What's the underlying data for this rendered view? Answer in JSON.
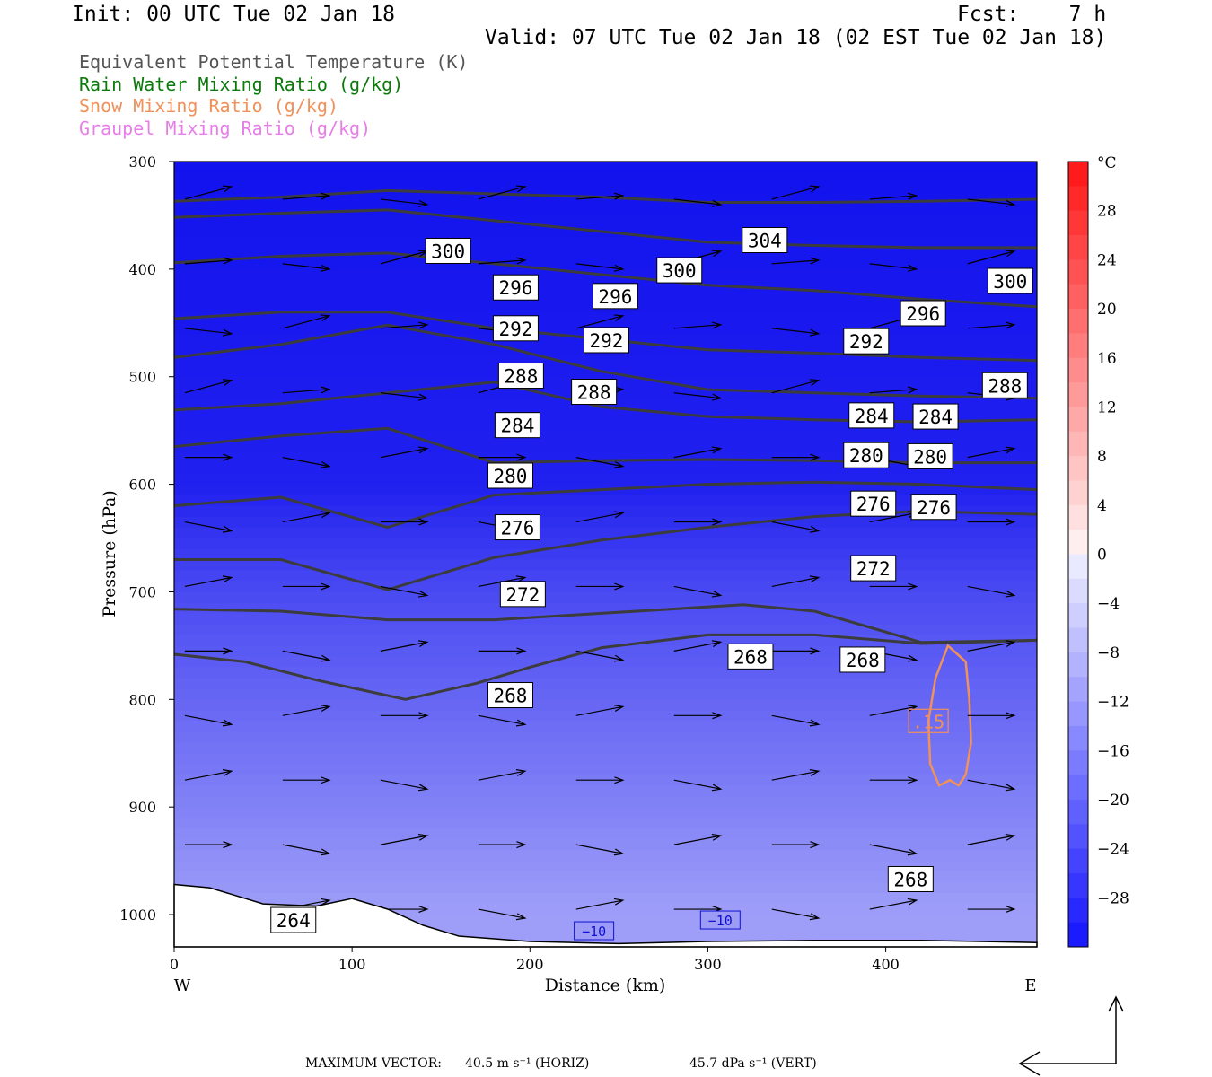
{
  "header": {
    "init": "Init: 00 UTC Tue 02 Jan 18",
    "fcst": "Fcst:    7 h",
    "valid": "Valid: 07 UTC Tue 02 Jan 18 (02 EST Tue 02 Jan 18)"
  },
  "legend": [
    {
      "label": "Equivalent Potential Temperature (K)",
      "color": "#555555"
    },
    {
      "label": "Rain Water Mixing Ratio (g/kg)",
      "color": "#0a7a0a"
    },
    {
      "label": "Snow Mixing Ratio (g/kg)",
      "color": "#f0915a"
    },
    {
      "label": "Graupel Mixing Ratio (g/kg)",
      "color": "#e77ee7"
    }
  ],
  "footer": {
    "max_vector_label": "MAXIMUM VECTOR:",
    "horiz": "40.5 m s⁻¹ (HORIZ)",
    "vert": "45.7 dPa s⁻¹ (VERT)"
  },
  "chart_data": {
    "type": "heatmap",
    "title": "",
    "xlabel": "Distance (km)",
    "ylabel": "Pressure (hPa)",
    "xlim": [
      0,
      485
    ],
    "ylim": [
      1030,
      300
    ],
    "x_ticks": [
      0,
      100,
      200,
      300,
      400
    ],
    "y_ticks": [
      300,
      400,
      500,
      600,
      700,
      800,
      900,
      1000
    ],
    "x_end_labels": {
      "left": "W",
      "right": "E"
    },
    "colorbar": {
      "unit": "°C",
      "tick_labels": [
        "28",
        "24",
        "20",
        "16",
        "12",
        "8",
        "4",
        "0",
        "−4",
        "−8",
        "−12",
        "−16",
        "−20",
        "−24",
        "−28"
      ],
      "ticks": [
        28,
        24,
        20,
        16,
        12,
        8,
        4,
        0,
        -4,
        -8,
        -12,
        -16,
        -20,
        -24,
        -28
      ],
      "range": [
        -32,
        32
      ]
    },
    "temperature_field": [
      {
        "p": 300,
        "t": -32
      },
      {
        "p": 600,
        "t": -30
      },
      {
        "p": 700,
        "t": -24
      },
      {
        "p": 800,
        "t": -20
      },
      {
        "p": 900,
        "t": -16
      },
      {
        "p": 1000,
        "t": -12
      }
    ],
    "theta_e_contours": [
      {
        "value": 304,
        "points": [
          [
            0,
            337
          ],
          [
            60,
            333
          ],
          [
            120,
            327
          ],
          [
            180,
            330
          ],
          [
            240,
            333
          ],
          [
            300,
            338
          ],
          [
            360,
            338
          ],
          [
            420,
            337
          ],
          [
            485,
            335
          ]
        ]
      },
      {
        "value": 300,
        "points": [
          [
            0,
            352
          ],
          [
            60,
            348
          ],
          [
            120,
            345
          ],
          [
            180,
            355
          ],
          [
            240,
            365
          ],
          [
            300,
            375
          ],
          [
            360,
            378
          ],
          [
            420,
            380
          ],
          [
            485,
            380
          ]
        ]
      },
      {
        "value": 296,
        "points": [
          [
            0,
            394
          ],
          [
            60,
            388
          ],
          [
            120,
            385
          ],
          [
            180,
            395
          ],
          [
            240,
            405
          ],
          [
            300,
            415
          ],
          [
            360,
            420
          ],
          [
            420,
            428
          ],
          [
            485,
            435
          ]
        ]
      },
      {
        "value": 292,
        "points": [
          [
            0,
            446
          ],
          [
            60,
            440
          ],
          [
            120,
            440
          ],
          [
            180,
            455
          ],
          [
            240,
            465
          ],
          [
            300,
            475
          ],
          [
            360,
            478
          ],
          [
            420,
            482
          ],
          [
            485,
            485
          ]
        ]
      },
      {
        "value": 288,
        "points": [
          [
            0,
            482
          ],
          [
            60,
            470
          ],
          [
            120,
            452
          ],
          [
            180,
            470
          ],
          [
            240,
            495
          ],
          [
            300,
            512
          ],
          [
            360,
            515
          ],
          [
            420,
            518
          ],
          [
            485,
            520
          ]
        ]
      },
      {
        "value": 284,
        "points": [
          [
            0,
            531
          ],
          [
            60,
            525
          ],
          [
            120,
            515
          ],
          [
            180,
            505
          ],
          [
            240,
            528
          ],
          [
            300,
            537
          ],
          [
            360,
            540
          ],
          [
            420,
            542
          ],
          [
            485,
            540
          ]
        ]
      },
      {
        "value": 280,
        "points": [
          [
            0,
            565
          ],
          [
            60,
            555
          ],
          [
            120,
            548
          ],
          [
            180,
            580
          ],
          [
            240,
            578
          ],
          [
            300,
            577
          ],
          [
            360,
            578
          ],
          [
            420,
            580
          ],
          [
            485,
            580
          ]
        ]
      },
      {
        "value": 276,
        "points": [
          [
            0,
            620
          ],
          [
            60,
            612
          ],
          [
            120,
            640
          ],
          [
            180,
            610
          ],
          [
            240,
            605
          ],
          [
            300,
            600
          ],
          [
            360,
            598
          ],
          [
            420,
            600
          ],
          [
            485,
            605
          ]
        ]
      },
      {
        "value": 272,
        "points": [
          [
            0,
            670
          ],
          [
            60,
            670
          ],
          [
            120,
            698
          ],
          [
            180,
            668
          ],
          [
            240,
            652
          ],
          [
            300,
            640
          ],
          [
            360,
            630
          ],
          [
            420,
            625
          ],
          [
            485,
            628
          ]
        ]
      },
      {
        "value": 268,
        "points": [
          [
            0,
            716
          ],
          [
            60,
            718
          ],
          [
            120,
            726
          ],
          [
            180,
            726
          ],
          [
            240,
            720
          ],
          [
            280,
            716
          ],
          [
            320,
            712
          ],
          [
            360,
            718
          ],
          [
            420,
            747
          ],
          [
            485,
            745
          ]
        ]
      },
      {
        "value": 264,
        "points": [
          [
            0,
            758
          ],
          [
            40,
            765
          ],
          [
            80,
            782
          ],
          [
            130,
            800
          ],
          [
            170,
            785
          ],
          [
            200,
            770
          ],
          [
            240,
            752
          ],
          [
            300,
            740
          ],
          [
            360,
            740
          ],
          [
            420,
            748
          ],
          [
            485,
            745
          ]
        ]
      }
    ],
    "contour_labels": [
      {
        "text": "300",
        "x": 154,
        "p": 383
      },
      {
        "text": "304",
        "x": 332,
        "p": 373
      },
      {
        "text": "296",
        "x": 192,
        "p": 417
      },
      {
        "text": "300",
        "x": 284,
        "p": 401
      },
      {
        "text": "296",
        "x": 248,
        "p": 425
      },
      {
        "text": "300",
        "x": 470,
        "p": 411
      },
      {
        "text": "296",
        "x": 421,
        "p": 441
      },
      {
        "text": "292",
        "x": 192,
        "p": 455
      },
      {
        "text": "292",
        "x": 243,
        "p": 466
      },
      {
        "text": "292",
        "x": 389,
        "p": 467
      },
      {
        "text": "288",
        "x": 195,
        "p": 499
      },
      {
        "text": "288",
        "x": 236,
        "p": 514
      },
      {
        "text": "288",
        "x": 467,
        "p": 508
      },
      {
        "text": "284",
        "x": 193,
        "p": 545
      },
      {
        "text": "284",
        "x": 392,
        "p": 536
      },
      {
        "text": "284",
        "x": 428,
        "p": 537
      },
      {
        "text": "280",
        "x": 189,
        "p": 592
      },
      {
        "text": "280",
        "x": 389,
        "p": 573
      },
      {
        "text": "280",
        "x": 425,
        "p": 574
      },
      {
        "text": "276",
        "x": 193,
        "p": 640
      },
      {
        "text": "276",
        "x": 393,
        "p": 618
      },
      {
        "text": "276",
        "x": 427,
        "p": 621
      },
      {
        "text": "272",
        "x": 196,
        "p": 702
      },
      {
        "text": "272",
        "x": 393,
        "p": 678
      },
      {
        "text": "268",
        "x": 189,
        "p": 796
      },
      {
        "text": "268",
        "x": 324,
        "p": 760
      },
      {
        "text": "268",
        "x": 387,
        "p": 763
      },
      {
        "text": "268",
        "x": 414,
        "p": 967
      },
      {
        "text": "264",
        "x": 67,
        "p": 1005
      }
    ],
    "snow_contour": {
      "value": ".15",
      "color": "#f0915a"
    },
    "temperature_labels": [
      {
        "text": "−10",
        "x": 236,
        "p": 1015
      },
      {
        "text": "−10",
        "x": 307,
        "p": 1005
      }
    ]
  }
}
